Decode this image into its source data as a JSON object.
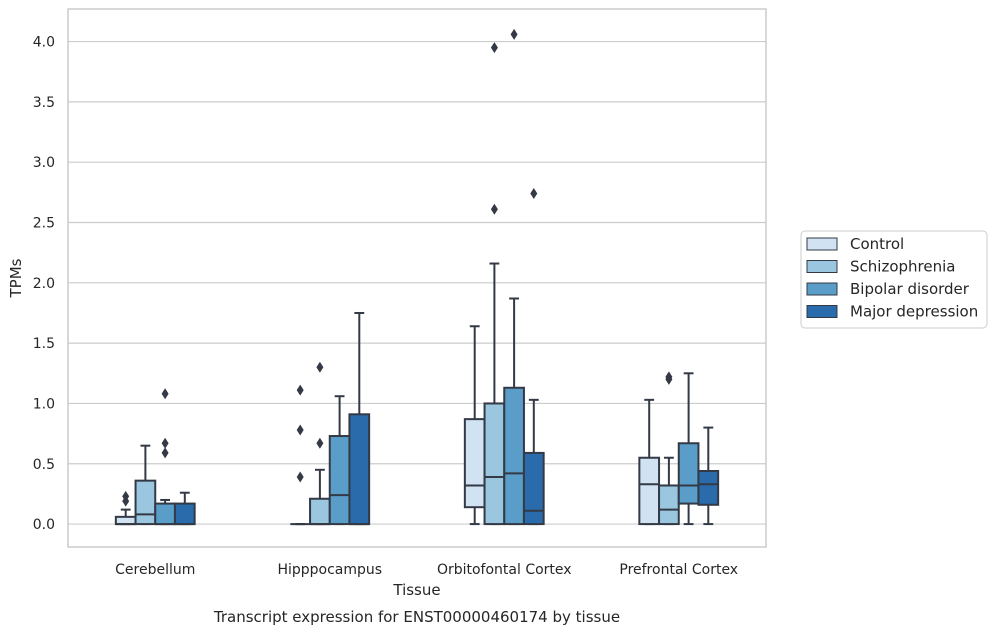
{
  "chart_data": {
    "type": "box",
    "title": "",
    "xlabel": "Tissue",
    "ylabel": "TPMs",
    "caption": "Transcript expression for ENST00000460174 by tissue",
    "ylim": [
      -0.19,
      4.27
    ],
    "yticks": [
      0.0,
      0.5,
      1.0,
      1.5,
      2.0,
      2.5,
      3.0,
      3.5,
      4.0
    ],
    "ytick_labels": [
      "0.0",
      "0.5",
      "1.0",
      "1.5",
      "2.0",
      "2.5",
      "3.0",
      "3.5",
      "4.0"
    ],
    "grid": true,
    "legend_position": "right",
    "categories": [
      "Cerebellum",
      "Hipppocampus",
      "Orbitofontal Cortex",
      "Prefrontal Cortex"
    ],
    "series": [
      {
        "name": "Control",
        "color": "#d1e2f2",
        "boxes": [
          {
            "whisker_low": 0.0,
            "q1": 0.0,
            "median": 0.0,
            "q3": 0.06,
            "whisker_high": 0.12,
            "outliers": [
              0.19,
              0.23
            ]
          },
          {
            "whisker_low": 0.0,
            "q1": 0.0,
            "median": 0.0,
            "q3": 0.0,
            "whisker_high": 0.0,
            "outliers": [
              0.39,
              0.78,
              1.11
            ]
          },
          {
            "whisker_low": 0.0,
            "q1": 0.14,
            "median": 0.32,
            "q3": 0.87,
            "whisker_high": 1.64,
            "outliers": []
          },
          {
            "whisker_low": 0.0,
            "q1": 0.0,
            "median": 0.33,
            "q3": 0.55,
            "whisker_high": 1.03,
            "outliers": []
          }
        ]
      },
      {
        "name": "Schizophrenia",
        "color": "#9ac6df",
        "boxes": [
          {
            "whisker_low": 0.0,
            "q1": 0.0,
            "median": 0.08,
            "q3": 0.36,
            "whisker_high": 0.65,
            "outliers": []
          },
          {
            "whisker_low": 0.0,
            "q1": 0.0,
            "median": 0.0,
            "q3": 0.21,
            "whisker_high": 0.45,
            "outliers": [
              0.67,
              1.3
            ]
          },
          {
            "whisker_low": 0.0,
            "q1": 0.0,
            "median": 0.39,
            "q3": 1.0,
            "whisker_high": 2.16,
            "outliers": [
              2.61,
              3.95
            ]
          },
          {
            "whisker_low": 0.0,
            "q1": 0.0,
            "median": 0.12,
            "q3": 0.32,
            "whisker_high": 0.55,
            "outliers": [
              1.2,
              1.22
            ]
          }
        ]
      },
      {
        "name": "Bipolar disorder",
        "color": "#5a9dc8",
        "boxes": [
          {
            "whisker_low": 0.0,
            "q1": 0.0,
            "median": 0.0,
            "q3": 0.17,
            "whisker_high": 0.2,
            "outliers": [
              0.59,
              0.67,
              1.08
            ]
          },
          {
            "whisker_low": 0.0,
            "q1": 0.0,
            "median": 0.24,
            "q3": 0.73,
            "whisker_high": 1.06,
            "outliers": []
          },
          {
            "whisker_low": 0.0,
            "q1": 0.0,
            "median": 0.42,
            "q3": 1.13,
            "whisker_high": 1.87,
            "outliers": [
              4.06
            ]
          },
          {
            "whisker_low": 0.0,
            "q1": 0.17,
            "median": 0.32,
            "q3": 0.67,
            "whisker_high": 1.25,
            "outliers": []
          }
        ]
      },
      {
        "name": "Major depression",
        "color": "#2a6cab",
        "boxes": [
          {
            "whisker_low": 0.0,
            "q1": 0.0,
            "median": 0.0,
            "q3": 0.17,
            "whisker_high": 0.26,
            "outliers": []
          },
          {
            "whisker_low": 0.0,
            "q1": 0.0,
            "median": 0.0,
            "q3": 0.91,
            "whisker_high": 1.75,
            "outliers": []
          },
          {
            "whisker_low": 0.0,
            "q1": 0.0,
            "median": 0.11,
            "q3": 0.59,
            "whisker_high": 1.03,
            "outliers": [
              2.74
            ]
          },
          {
            "whisker_low": 0.0,
            "q1": 0.16,
            "median": 0.33,
            "q3": 0.44,
            "whisker_high": 0.8,
            "outliers": []
          }
        ]
      }
    ],
    "colors": {
      "grid": "#cccccc",
      "frame": "#cccccc",
      "edge": "#333a45"
    }
  }
}
